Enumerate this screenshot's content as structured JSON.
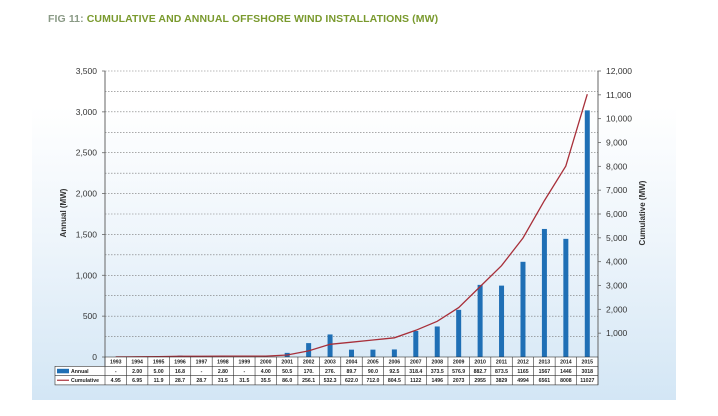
{
  "title": {
    "prefix": "FIG 11:",
    "text": "CUMULATIVE AND ANNUAL OFFSHORE WIND INSTALLATIONS (MW)"
  },
  "colors": {
    "bar": "#1f6fb5",
    "line": "#a8303a",
    "title_prefix": "#8a9a86",
    "title_main": "#7a9a2e"
  },
  "chart_data": {
    "type": "bar",
    "title": "CUMULATIVE AND ANNUAL OFFSHORE WIND INSTALLATIONS (MW)",
    "categories": [
      "1993",
      "1994",
      "1995",
      "1996",
      "1997",
      "1998",
      "1999",
      "2000",
      "2001",
      "2002",
      "2003",
      "2004",
      "2005",
      "2006",
      "2007",
      "2008",
      "2009",
      "2010",
      "2011",
      "2012",
      "2013",
      "2014",
      "2015"
    ],
    "series": [
      {
        "name": "Annual",
        "type": "bar",
        "axis": "left",
        "labels": [
          "-",
          "2.00",
          "5.00",
          "16.8",
          "-",
          "2.80",
          "-",
          "4.00",
          "50.5",
          "170.",
          "276.",
          "89.7",
          "90.0",
          "92.5",
          "318.4",
          "373.5",
          "576.9",
          "882.7",
          "873.5",
          "1165",
          "1567",
          "1446",
          "3018"
        ],
        "values": [
          0,
          2.0,
          5.0,
          16.8,
          0,
          2.8,
          0,
          4.0,
          50.5,
          170,
          276,
          89.7,
          90.0,
          92.5,
          318.4,
          373.5,
          576.9,
          882.7,
          873.5,
          1165,
          1567,
          1446,
          3018
        ]
      },
      {
        "name": "Cumulative",
        "type": "line",
        "axis": "right",
        "labels": [
          "4.95",
          "6.95",
          "11.9",
          "28.7",
          "28.7",
          "31.5",
          "31.5",
          "35.5",
          "86.0",
          "256.1",
          "532.3",
          "622.0",
          "712.0",
          "804.5",
          "1122",
          "1496",
          "2073",
          "2955",
          "3829",
          "4994",
          "6561",
          "8008",
          "11027"
        ],
        "values": [
          4.95,
          6.95,
          11.9,
          28.7,
          28.7,
          31.5,
          31.5,
          35.5,
          86.0,
          256.1,
          532.3,
          622.0,
          712.0,
          804.5,
          1122,
          1496,
          2073,
          2955,
          3829,
          4994,
          6561,
          8008,
          11027
        ]
      }
    ],
    "ylabel": "Annual (MW)",
    "y2label": "Cumulative (MW)",
    "ylim": [
      0,
      3500
    ],
    "y2lim": [
      0,
      12000
    ],
    "yticks": [
      "0",
      "500",
      "1,000",
      "1,500",
      "2,000",
      "2,500",
      "3,000",
      "3,500"
    ],
    "y2ticks": [
      "1,000",
      "2,000",
      "3,000",
      "4,000",
      "5,000",
      "6,000",
      "7,000",
      "8,000",
      "9,000",
      "10,000",
      "11,000",
      "12,000"
    ],
    "grid": true,
    "legend": "data-table-bottom"
  }
}
